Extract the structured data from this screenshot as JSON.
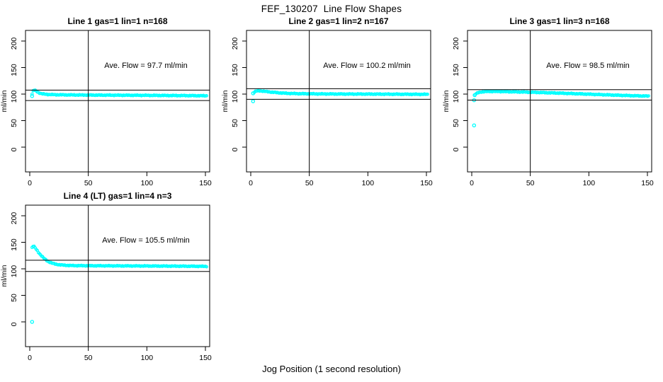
{
  "title": "FEF_130207  Line Flow Shapes",
  "xlabel": "Jog Position (1 second resolution)",
  "colors": {
    "points": "#00ffff",
    "axis": "#000000",
    "background": "#ffffff"
  },
  "axes": {
    "ylabel": "ml/min",
    "xticks": [
      0,
      50,
      100,
      150
    ],
    "yticks": [
      0,
      50,
      100,
      150,
      200
    ]
  },
  "chart_data": [
    {
      "type": "scatter",
      "title": "Line 1 gas=1 lin=1 n=168",
      "row": 0,
      "col": 0,
      "n": 168,
      "ave_flow": 97.7,
      "ave_flow_label": "Ave. Flow =  97.7  ml/min",
      "ylabel": "ml/min",
      "vline_x": 50,
      "hlines": [
        107.5,
        87.9
      ],
      "outliers": [
        [
          2,
          96.2
        ]
      ],
      "trend": [
        [
          2,
          100
        ],
        [
          3,
          106.5
        ],
        [
          4,
          107.5
        ],
        [
          5,
          106.5
        ],
        [
          6,
          105
        ],
        [
          7,
          103.5
        ],
        [
          8,
          102.3
        ],
        [
          10,
          100.8
        ],
        [
          12,
          100
        ],
        [
          16,
          99.3
        ],
        [
          22,
          98.8
        ],
        [
          30,
          98.5
        ],
        [
          45,
          98.2
        ],
        [
          60,
          98.0
        ],
        [
          80,
          97.8
        ],
        [
          100,
          97.6
        ],
        [
          120,
          97.3
        ],
        [
          135,
          97.1
        ],
        [
          151,
          96.8
        ]
      ],
      "n_trend_points": 167
    },
    {
      "type": "scatter",
      "title": "Line 2 gas=1 lin=2 n=167",
      "row": 0,
      "col": 1,
      "n": 167,
      "ave_flow": 100.2,
      "ave_flow_label": "Ave. Flow =  100.2  ml/min",
      "ylabel": "ml/min",
      "vline_x": 50,
      "hlines": [
        110.2,
        90.2
      ],
      "outliers": [
        [
          2,
          101.5
        ],
        [
          2,
          86.5
        ]
      ],
      "trend": [
        [
          3,
          103.5
        ],
        [
          4,
          105
        ],
        [
          6,
          106.2
        ],
        [
          8,
          106.2
        ],
        [
          10,
          105.6
        ],
        [
          14,
          104.6
        ],
        [
          18,
          103.6
        ],
        [
          24,
          102.4
        ],
        [
          30,
          101.5
        ],
        [
          40,
          100.8
        ],
        [
          60,
          100.3
        ],
        [
          80,
          100.1
        ],
        [
          100,
          100.0
        ],
        [
          120,
          99.8
        ],
        [
          151,
          99.5
        ]
      ],
      "n_trend_points": 165
    },
    {
      "type": "scatter",
      "title": "Line 3 gas=1 lin=3 n=168",
      "row": 0,
      "col": 2,
      "n": 168,
      "ave_flow": 98.5,
      "ave_flow_label": "Ave. Flow =  98.5  ml/min",
      "ylabel": "ml/min",
      "vline_x": 50,
      "hlines": [
        108.4,
        88.7
      ],
      "outliers": [
        [
          2,
          41
        ],
        [
          2,
          88.5
        ],
        [
          2.5,
          98
        ]
      ],
      "trend": [
        [
          3,
          99.5
        ],
        [
          4,
          101
        ],
        [
          6,
          103
        ],
        [
          8,
          104
        ],
        [
          12,
          104.8
        ],
        [
          18,
          105
        ],
        [
          25,
          104.8
        ],
        [
          35,
          104.3
        ],
        [
          45,
          103.8
        ],
        [
          55,
          103.2
        ],
        [
          65,
          102.5
        ],
        [
          75,
          101.8
        ],
        [
          85,
          101
        ],
        [
          95,
          100.2
        ],
        [
          105,
          99.4
        ],
        [
          115,
          98.6
        ],
        [
          125,
          97.8
        ],
        [
          135,
          97.1
        ],
        [
          143,
          96.6
        ],
        [
          151,
          96.2
        ]
      ],
      "n_trend_points": 165
    },
    {
      "type": "scatter",
      "title": "Line 4 (LT) gas=1 lin=4 n=3",
      "row": 1,
      "col": 0,
      "n": 3,
      "ave_flow": 105.5,
      "ave_flow_label": "Ave. Flow =  105.5  ml/min",
      "ylabel": "ml/min",
      "vline_x": 50,
      "hlines": [
        116.1,
        95.0
      ],
      "outliers": [
        [
          2,
          0
        ]
      ],
      "trend": [
        [
          2,
          140
        ],
        [
          3,
          143
        ],
        [
          4,
          141.5
        ],
        [
          5,
          138.5
        ],
        [
          6,
          135.5
        ],
        [
          8,
          129.5
        ],
        [
          10,
          124.5
        ],
        [
          12,
          120
        ],
        [
          14,
          116.5
        ],
        [
          16,
          113.5
        ],
        [
          18,
          111.5
        ],
        [
          20,
          110
        ],
        [
          23,
          108.4
        ],
        [
          26,
          107.4
        ],
        [
          30,
          106.7
        ],
        [
          35,
          106.2
        ],
        [
          40,
          106.0
        ],
        [
          50,
          105.8
        ],
        [
          60,
          105.7
        ],
        [
          70,
          105.6
        ],
        [
          80,
          105.5
        ],
        [
          90,
          105.4
        ],
        [
          100,
          105.3
        ],
        [
          110,
          105.2
        ],
        [
          120,
          105.1
        ],
        [
          135,
          104.9
        ],
        [
          151,
          104.6
        ]
      ],
      "n_trend_points": 167
    }
  ]
}
